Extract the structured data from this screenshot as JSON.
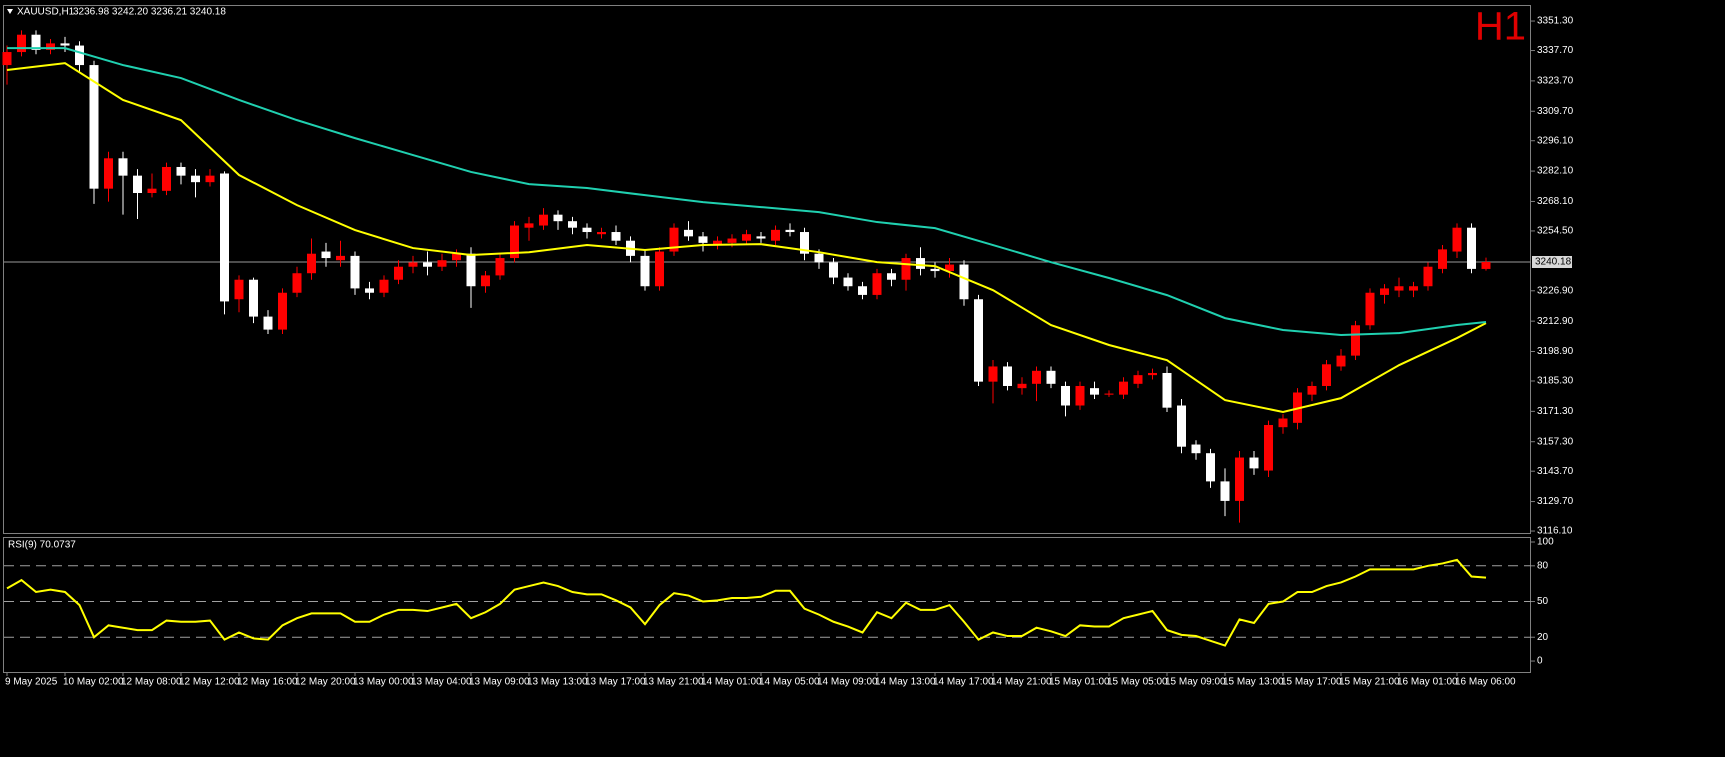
{
  "chart_data": [
    {
      "type": "candlestick",
      "title": "XAUUSD,H1",
      "quote": "3236.98 3242.20 3236.21 3240.18",
      "timeframe_label": "H1",
      "categories": [
        "9 May 2025",
        null,
        null,
        null,
        "10 May 02:00",
        null,
        null,
        null,
        "12 May 08:00",
        null,
        null,
        null,
        "12 May 12:00",
        null,
        null,
        null,
        "12 May 16:00",
        null,
        null,
        null,
        "12 May 20:00",
        null,
        null,
        null,
        "13 May 00:00",
        null,
        null,
        null,
        "13 May 04:00",
        null,
        null,
        null,
        "13 May 09:00",
        null,
        null,
        null,
        "13 May 13:00",
        null,
        null,
        null,
        "13 May 17:00",
        null,
        null,
        null,
        "13 May 21:00",
        null,
        null,
        null,
        "14 May 01:00",
        null,
        null,
        null,
        "14 May 05:00",
        null,
        null,
        null,
        "14 May 09:00",
        null,
        null,
        null,
        "14 May 13:00",
        null,
        null,
        null,
        "14 May 17:00",
        null,
        null,
        null,
        "14 May 21:00",
        null,
        null,
        null,
        "15 May 01:00",
        null,
        null,
        null,
        "15 May 05:00",
        null,
        null,
        null,
        "15 May 09:00",
        null,
        null,
        null,
        "15 May 13:00",
        null,
        null,
        null,
        "15 May 17:00",
        null,
        null,
        null,
        "15 May 21:00",
        null,
        null,
        null,
        "16 May 01:00",
        null,
        null,
        null,
        "16 May 06:00",
        null,
        null
      ],
      "open": [
        3331,
        3337,
        3345,
        3338,
        3341,
        3340,
        3331,
        3274,
        3288,
        3280,
        3272,
        3273,
        3284,
        3280,
        3277,
        3281,
        3223,
        3232,
        3215,
        3209,
        3226,
        3235,
        3245,
        3241,
        3243,
        3228,
        3226,
        3232,
        3238,
        3240,
        3238,
        3241,
        3244,
        3229,
        3234,
        3242,
        3256,
        3257,
        3262,
        3259,
        3256,
        3253,
        3254,
        3250,
        3243,
        3229,
        3245,
        3255,
        3252,
        3248,
        3249,
        3250,
        3252,
        3250,
        3255,
        3254,
        3244,
        3240,
        3233,
        3229,
        3225,
        3235,
        3232,
        3242,
        3237,
        3236,
        3239,
        3223,
        3185,
        3192,
        3182,
        3184,
        3190,
        3183,
        3174,
        3182,
        3179,
        3179,
        3184,
        3188,
        3189,
        3174,
        3156,
        3152,
        3139,
        3130,
        3150,
        3144,
        3164,
        3166,
        3179,
        3183,
        3192,
        3197,
        3211,
        3225,
        3227,
        3227,
        3229,
        3237,
        3245,
        3256,
        3236.98
      ],
      "high": [
        3340,
        3347,
        3347,
        3343,
        3344,
        3342,
        3333,
        3291,
        3291,
        3283,
        3281,
        3286,
        3286,
        3283,
        3283,
        3282,
        3234,
        3233,
        3218,
        3228,
        3238,
        3251,
        3249,
        3250,
        3245,
        3231,
        3234,
        3241,
        3243,
        3245,
        3244,
        3246,
        3247,
        3236,
        3244,
        3259,
        3261,
        3265,
        3264,
        3261,
        3258,
        3256,
        3257,
        3252,
        3246,
        3247,
        3258,
        3259,
        3254,
        3252,
        3253,
        3255,
        3254,
        3257,
        3258,
        3256,
        3246,
        3242,
        3235,
        3231,
        3237,
        3237,
        3244,
        3247,
        3240,
        3242,
        3241,
        3225,
        3195,
        3194,
        3187,
        3192,
        3192,
        3185,
        3185,
        3185,
        3181,
        3187,
        3190,
        3191,
        3192,
        3177,
        3158,
        3154,
        3145,
        3153,
        3153,
        3167,
        3170,
        3182,
        3185,
        3195,
        3200,
        3213,
        3228,
        3230,
        3233,
        3231,
        3240,
        3248,
        3258,
        3258,
        3242.2
      ],
      "low": [
        3322,
        3335,
        3336,
        3336,
        3337,
        3328,
        3267,
        3268,
        3262,
        3260,
        3270,
        3271,
        3276,
        3270,
        3275,
        3216,
        3217,
        3212,
        3207,
        3207,
        3224,
        3232,
        3238,
        3238,
        3225,
        3223,
        3224,
        3230,
        3235,
        3234,
        3236,
        3238,
        3219,
        3226,
        3232,
        3240,
        3250,
        3255,
        3255,
        3253,
        3251,
        3251,
        3248,
        3240,
        3227,
        3227,
        3243,
        3250,
        3245,
        3246,
        3247,
        3248,
        3249,
        3248,
        3252,
        3241,
        3237,
        3230,
        3227,
        3223,
        3223,
        3229,
        3227,
        3234,
        3233,
        3233,
        3220,
        3183,
        3175,
        3181,
        3179,
        3176,
        3182,
        3169,
        3172,
        3177,
        3178,
        3177,
        3182,
        3186,
        3171,
        3152,
        3149,
        3136,
        3123,
        3120,
        3142,
        3141,
        3161,
        3163,
        3176,
        3181,
        3190,
        3195,
        3209,
        3221,
        3224,
        3224,
        3227,
        3235,
        3242,
        3235,
        3236.21
      ],
      "close": [
        3337,
        3345,
        3338,
        3341,
        3340,
        3331,
        3274,
        3288,
        3280,
        3272,
        3274,
        3284,
        3280,
        3277,
        3280,
        3222,
        3232,
        3215,
        3209,
        3226,
        3235,
        3244,
        3242,
        3243,
        3228,
        3226,
        3232,
        3238,
        3240,
        3238,
        3241,
        3244,
        3229,
        3234,
        3242,
        3257,
        3258,
        3262,
        3259,
        3256,
        3254,
        3254,
        3250,
        3243,
        3229,
        3245,
        3256,
        3252,
        3249,
        3250,
        3251,
        3253,
        3251,
        3255,
        3254,
        3244,
        3240,
        3233,
        3229,
        3225,
        3235,
        3232,
        3242,
        3237,
        3236,
        3239,
        3223,
        3185,
        3192,
        3183,
        3184,
        3190,
        3184,
        3174,
        3183,
        3179,
        3179.5,
        3185,
        3188,
        3189,
        3173,
        3155,
        3152,
        3139,
        3130,
        3150,
        3145,
        3165,
        3168,
        3180,
        3183,
        3193,
        3197,
        3211,
        3226,
        3228,
        3229,
        3229,
        3238,
        3246,
        3256,
        3237,
        3240.18
      ],
      "up_color": "#ff0000",
      "down_color": "#ffffff",
      "moving_averages": [
        {
          "color": "#ffff00",
          "x": [
            0,
            4,
            8,
            12,
            16,
            20,
            24,
            28,
            32,
            36,
            40,
            44,
            48,
            52,
            56,
            60,
            64,
            68,
            72,
            76,
            80,
            84,
            88,
            92,
            96,
            100,
            102
          ],
          "values": [
            3328.7,
            3331.9,
            3314.9,
            3305.6,
            3280.3,
            3266.4,
            3254.9,
            3246.6,
            3243.4,
            3244.7,
            3248,
            3245.7,
            3248,
            3248.4,
            3244.7,
            3240.1,
            3238.3,
            3227.2,
            3211.1,
            3201.9,
            3194.9,
            3176.5,
            3171,
            3177.4,
            3192.6,
            3205.1,
            3212
          ]
        },
        {
          "color": "#20d0b0",
          "x": [
            0,
            4,
            8,
            12,
            16,
            20,
            24,
            28,
            32,
            36,
            40,
            44,
            48,
            52,
            56,
            60,
            64,
            68,
            72,
            76,
            80,
            84,
            88,
            92,
            96,
            100,
            102
          ],
          "values": [
            3338.8,
            3338.8,
            3331,
            3325,
            3314.9,
            3305.6,
            3297.3,
            3289.5,
            3281.7,
            3276.1,
            3274.3,
            3271,
            3267.8,
            3265.5,
            3263.2,
            3258.6,
            3255.8,
            3248,
            3240.1,
            3232.8,
            3224.9,
            3214.3,
            3208.8,
            3206.5,
            3207.4,
            3211.1,
            3212.5
          ]
        }
      ],
      "current_price": 3240.18,
      "ylim": [
        3115.2,
        3358.7
      ],
      "yticks": [
        {
          "value": 3351.3,
          "label": "3351.30"
        },
        {
          "value": 3337.7,
          "label": "3337.70"
        },
        {
          "value": 3323.7,
          "label": "3323.70"
        },
        {
          "value": 3309.7,
          "label": "3309.70"
        },
        {
          "value": 3296.1,
          "label": "3296.10"
        },
        {
          "value": 3282.1,
          "label": "3282.10"
        },
        {
          "value": 3268.1,
          "label": "3268.10"
        },
        {
          "value": 3254.5,
          "label": "3254.50"
        },
        {
          "value": 3226.9,
          "label": "3226.90"
        },
        {
          "value": 3212.9,
          "label": "3212.90"
        },
        {
          "value": 3198.9,
          "label": "3198.90"
        },
        {
          "value": 3185.3,
          "label": "3185.30"
        },
        {
          "value": 3171.3,
          "label": "3171.30"
        },
        {
          "value": 3157.3,
          "label": "3157.30"
        },
        {
          "value": 3143.7,
          "label": "3143.70"
        },
        {
          "value": 3129.7,
          "label": "3129.70"
        },
        {
          "value": 3116.1,
          "label": "3116.10"
        }
      ],
      "grid": false
    },
    {
      "type": "line",
      "title": "RSI(9) 70.0737",
      "color": "#ffff00",
      "values": [
        61,
        68,
        58,
        60,
        58,
        47,
        20,
        30,
        28,
        26,
        26,
        34,
        33,
        33,
        34,
        18,
        24,
        19,
        18,
        30,
        36,
        40,
        40,
        40,
        33,
        33,
        39,
        43,
        43,
        42,
        45,
        48,
        36,
        41,
        48,
        60,
        63,
        66,
        63,
        58,
        56,
        56,
        51,
        45,
        31,
        47,
        57,
        55,
        50,
        51,
        53,
        53,
        54,
        59,
        59,
        44,
        39,
        33,
        29,
        24,
        41,
        36,
        49,
        43,
        43,
        47,
        33,
        18,
        24,
        21,
        21,
        28,
        25,
        21,
        30,
        29,
        29,
        36,
        39,
        42,
        26,
        22,
        21,
        17,
        13,
        35,
        32,
        48,
        50,
        58,
        58,
        63,
        66,
        71,
        77,
        77,
        77,
        77,
        80,
        82,
        85,
        71,
        70.0737
      ],
      "levels": [
        80,
        50,
        20
      ],
      "ylim": [
        -9.2,
        104.2
      ],
      "yticks": [
        100,
        80,
        50,
        20,
        0
      ]
    }
  ]
}
